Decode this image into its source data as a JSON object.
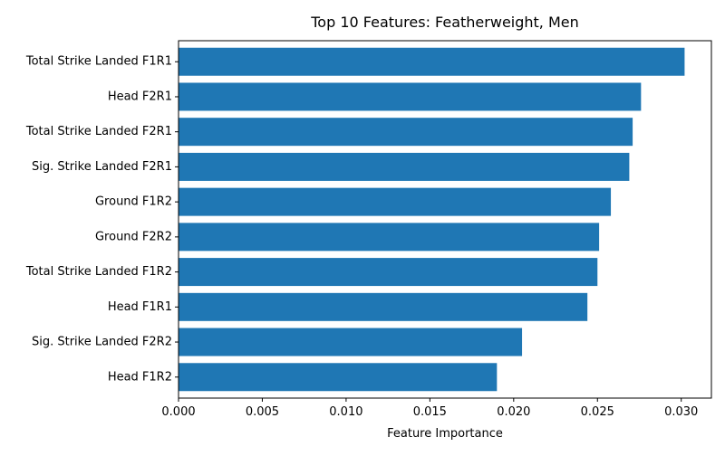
{
  "chart_data": {
    "type": "bar",
    "orientation": "horizontal",
    "title": "Top 10 Features: Featherweight, Men",
    "xlabel": "Feature Importance",
    "ylabel": "",
    "xlim": [
      0,
      0.0318
    ],
    "xticks": [
      0.0,
      0.005,
      0.01,
      0.015,
      0.02,
      0.025,
      0.03
    ],
    "xtick_labels": [
      "0.000",
      "0.005",
      "0.010",
      "0.015",
      "0.020",
      "0.025",
      "0.030"
    ],
    "categories": [
      "Total Strike Landed F1R1",
      "Head F2R1",
      "Total Strike Landed F2R1",
      "Sig. Strike Landed F2R1",
      "Ground F1R2",
      "Ground F2R2",
      "Total Strike Landed F1R2",
      "Head F1R1",
      "Sig. Strike Landed F2R2",
      "Head F1R2"
    ],
    "values": [
      0.0302,
      0.0276,
      0.0271,
      0.0269,
      0.0258,
      0.0251,
      0.025,
      0.0244,
      0.0205,
      0.019
    ],
    "bar_color": "#1f77b4",
    "grid": false,
    "legend": false
  }
}
